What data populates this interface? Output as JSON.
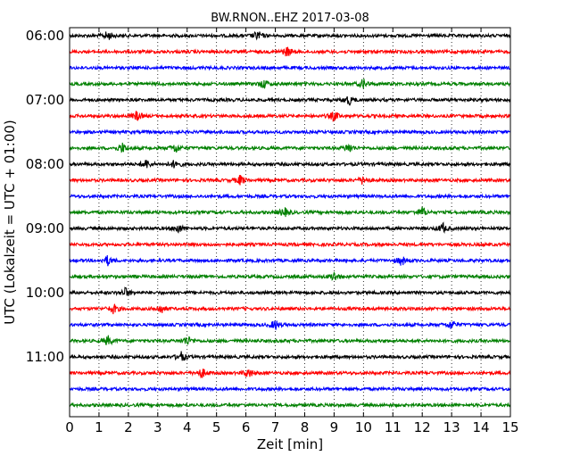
{
  "chart_data": {
    "type": "line",
    "title": "BW.RNON..EHZ 2017-03-08",
    "xlabel": "Zeit  [min]",
    "ylabel": "UTC (Lokalzeit = UTC + 01:00)",
    "xlim": [
      0,
      15
    ],
    "x_ticks": [
      "0",
      "1",
      "2",
      "3",
      "4",
      "5",
      "6",
      "7",
      "8",
      "9",
      "10",
      "11",
      "12",
      "13",
      "14",
      "15"
    ],
    "y_ticks": [
      "06:00",
      "07:00",
      "08:00",
      "09:00",
      "10:00",
      "11:00"
    ],
    "grid": "vertical dotted",
    "trace_colors": [
      "#000000",
      "#ff0000",
      "#0000ff",
      "#008000"
    ],
    "traces": [
      {
        "start": "06:00",
        "events_min": [
          1.3,
          6.4
        ]
      },
      {
        "start": "06:15",
        "events_min": [
          7.4
        ]
      },
      {
        "start": "06:30",
        "events_min": []
      },
      {
        "start": "06:45",
        "events_min": [
          6.6,
          10.0
        ]
      },
      {
        "start": "07:00",
        "events_min": [
          9.5
        ]
      },
      {
        "start": "07:15",
        "events_min": [
          2.3,
          9.0
        ]
      },
      {
        "start": "07:30",
        "events_min": []
      },
      {
        "start": "07:45",
        "events_min": [
          1.8,
          3.6,
          9.5
        ]
      },
      {
        "start": "08:00",
        "events_min": [
          2.6,
          3.6
        ]
      },
      {
        "start": "08:15",
        "events_min": [
          5.8,
          10.0
        ]
      },
      {
        "start": "08:30",
        "events_min": []
      },
      {
        "start": "08:45",
        "events_min": [
          7.3,
          12.0
        ]
      },
      {
        "start": "09:00",
        "events_min": [
          3.7,
          12.7
        ]
      },
      {
        "start": "09:15",
        "events_min": []
      },
      {
        "start": "09:30",
        "events_min": [
          1.3,
          11.3
        ]
      },
      {
        "start": "09:45",
        "events_min": [
          9.0
        ]
      },
      {
        "start": "10:00",
        "events_min": [
          1.9
        ]
      },
      {
        "start": "10:15",
        "events_min": [
          1.5,
          3.1
        ]
      },
      {
        "start": "10:30",
        "events_min": [
          7.0,
          13.0
        ]
      },
      {
        "start": "10:45",
        "events_min": [
          1.3,
          4.0
        ]
      },
      {
        "start": "11:00",
        "events_min": [
          3.8
        ]
      },
      {
        "start": "11:15",
        "events_min": [
          4.5,
          6.1
        ]
      },
      {
        "start": "11:30",
        "events_min": []
      },
      {
        "start": "11:45",
        "events_min": []
      }
    ]
  }
}
